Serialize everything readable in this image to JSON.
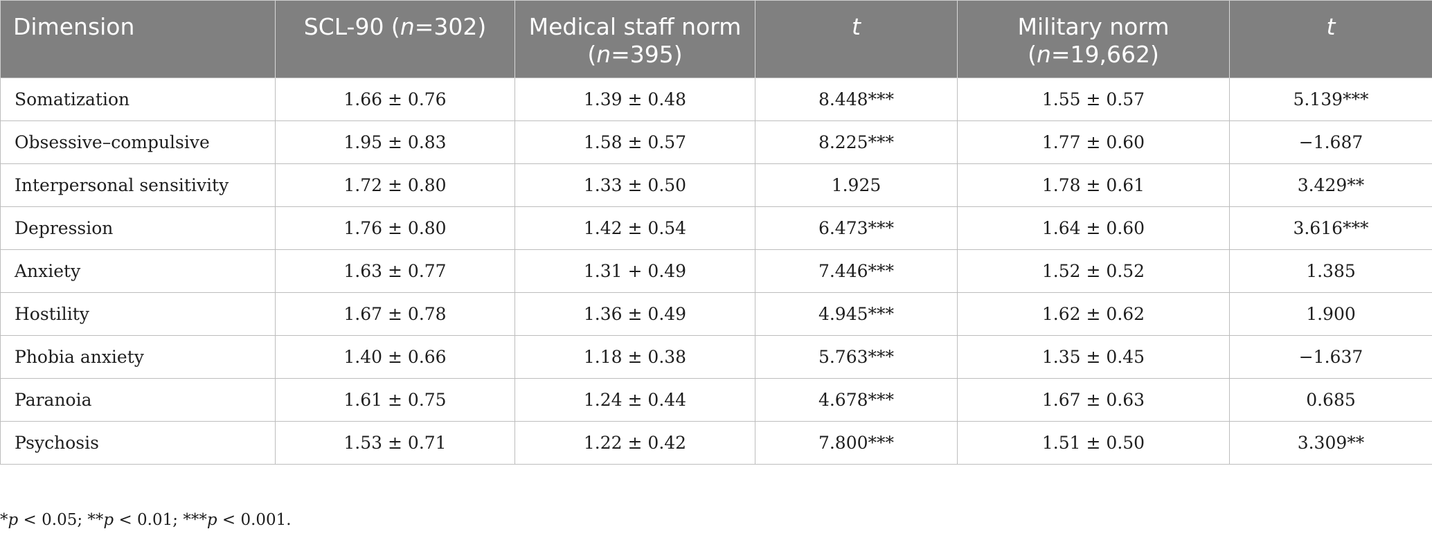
{
  "headers": [
    {
      "pre": "Dimension",
      "n": "",
      "post": ""
    },
    {
      "pre": "SCL-90 (",
      "n": "n",
      "post": "=302)"
    },
    {
      "pre": "Medical staff norm (",
      "n": "n",
      "post": "=395)"
    },
    {
      "pre": "",
      "n": "t",
      "post": ""
    },
    {
      "pre": "Military norm (",
      "n": "n",
      "post": "=19,662)"
    },
    {
      "pre": "",
      "n": "t",
      "post": ""
    }
  ],
  "rows": [
    {
      "dimension": "Somatization",
      "scl": "1.66 ± 0.76",
      "medical": "1.39 ± 0.48",
      "t1": "8.448***",
      "military": "1.55 ± 0.57",
      "t2": "5.139***"
    },
    {
      "dimension": "Obsessive–compulsive",
      "scl": "1.95 ± 0.83",
      "medical": "1.58 ± 0.57",
      "t1": "8.225***",
      "military": "1.77 ± 0.60",
      "t2": "−1.687"
    },
    {
      "dimension": "Interpersonal sensitivity",
      "scl": "1.72 ± 0.80",
      "medical": "1.33 ± 0.50",
      "t1": "1.925",
      "military": "1.78 ± 0.61",
      "t2": "3.429**"
    },
    {
      "dimension": "Depression",
      "scl": "1.76 ± 0.80",
      "medical": "1.42 ± 0.54",
      "t1": "6.473***",
      "military": "1.64 ± 0.60",
      "t2": "3.616***"
    },
    {
      "dimension": "Anxiety",
      "scl": "1.63 ± 0.77",
      "medical": "1.31 + 0.49",
      "t1": "7.446***",
      "military": "1.52 ± 0.52",
      "t2": "1.385"
    },
    {
      "dimension": "Hostility",
      "scl": "1.67 ± 0.78",
      "medical": "1.36 ± 0.49",
      "t1": "4.945***",
      "military": "1.62 ± 0.62",
      "t2": "1.900"
    },
    {
      "dimension": "Phobia anxiety",
      "scl": "1.40 ± 0.66",
      "medical": "1.18 ± 0.38",
      "t1": "5.763***",
      "military": "1.35 ± 0.45",
      "t2": "−1.637"
    },
    {
      "dimension": "Paranoia",
      "scl": "1.61 ± 0.75",
      "medical": "1.24 ± 0.44",
      "t1": "4.678***",
      "military": "1.67 ± 0.63",
      "t2": "0.685"
    },
    {
      "dimension": "Psychosis",
      "scl": "1.53 ± 0.71",
      "medical": "1.22 ± 0.42",
      "t1": "7.800***",
      "military": "1.51 ± 0.50",
      "t2": "3.309**"
    }
  ],
  "footnote": [
    {
      "stars": "*",
      "p": "p",
      "rest": " < 0.05; "
    },
    {
      "stars": "**",
      "p": "p",
      "rest": " < 0.01; "
    },
    {
      "stars": "***",
      "p": "p",
      "rest": " < 0.001."
    }
  ]
}
